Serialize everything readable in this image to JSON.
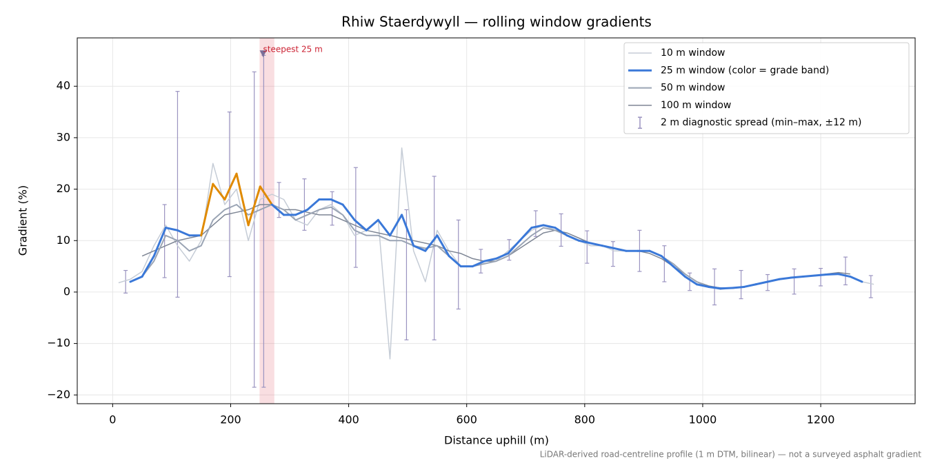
{
  "chart_data": {
    "type": "line",
    "title": "Rhiw Staerdywyll — rolling window gradients",
    "x_label": "Distance uphill (m)",
    "y_label": "Gradient (%)",
    "footnote": "LiDAR-derived road-centreline profile (1 m DTM, bilinear) — not a surveyed asphalt gradient",
    "xlim": [
      -60,
      1360
    ],
    "ylim": [
      -21.7,
      49.4
    ],
    "xticks": [
      0,
      200,
      400,
      600,
      800,
      1000,
      1200
    ],
    "yticks": [
      {
        "value": -20,
        "label": "−20"
      },
      {
        "value": -10,
        "label": "−10"
      },
      0,
      10,
      20,
      30,
      40
    ],
    "grid": true,
    "legend": "upper right",
    "x": [
      10,
      30,
      50,
      70,
      90,
      110,
      130,
      150,
      170,
      190,
      210,
      230,
      250,
      270,
      290,
      310,
      330,
      350,
      370,
      390,
      410,
      430,
      450,
      470,
      490,
      510,
      530,
      550,
      570,
      590,
      610,
      630,
      650,
      670,
      690,
      710,
      730,
      750,
      770,
      790,
      810,
      830,
      850,
      870,
      890,
      910,
      930,
      950,
      970,
      990,
      1010,
      1030,
      1050,
      1070,
      1090,
      1110,
      1130,
      1150,
      1170,
      1190,
      1210,
      1230,
      1250,
      1270,
      1290
    ],
    "series": [
      {
        "name": "10 m window",
        "color": "#c5ccd6",
        "linewidth": 1.5,
        "values": [
          1.8,
          2.5,
          4,
          9,
          13,
          9,
          6,
          10,
          25,
          17,
          20,
          10,
          18,
          19,
          18,
          14,
          13,
          16,
          17,
          15,
          11,
          12,
          14,
          -13,
          28,
          8,
          2,
          12,
          8,
          5,
          5,
          6,
          6,
          8,
          10,
          12,
          13,
          12,
          11,
          10,
          9,
          9,
          8,
          8,
          8,
          8,
          7,
          5,
          3,
          1.5,
          1,
          0.5,
          0.8,
          1,
          1.5,
          2,
          2.5,
          2.8,
          3,
          3.2,
          3.3,
          3.5,
          3,
          2,
          1.5
        ]
      },
      {
        "name": "25 m window (color = grade band)",
        "color": "#3a78d8",
        "linewidth": 3,
        "values": [
          null,
          2,
          3,
          7,
          12.5,
          12,
          11,
          11,
          21,
          18,
          23,
          13,
          20.5,
          17,
          15,
          15,
          16,
          18,
          18,
          17,
          14,
          12,
          14,
          11,
          15,
          9,
          8,
          11,
          7,
          5,
          5,
          6,
          6.5,
          7.5,
          10,
          12.5,
          13,
          12.5,
          11,
          10,
          9.5,
          9,
          8.5,
          8,
          8,
          8,
          7,
          5,
          3,
          1.5,
          1,
          0.7,
          0.8,
          1,
          1.5,
          2,
          2.5,
          2.8,
          3,
          3.2,
          3.4,
          3.5,
          3,
          2,
          null
        ],
        "point_colors": [
          "#3a78d8",
          "#3a78d8",
          "#3a78d8",
          "#3a78d8",
          "#3a78d8",
          "#3a78d8",
          "#3a78d8",
          "#3a78d8",
          "#e08a00",
          "#3a78d8",
          "#e08a00",
          "#3a78d8",
          "#e08a00",
          "#3a78d8",
          "#3a78d8",
          "#3a78d8",
          "#3a78d8",
          "#3a78d8",
          "#3a78d8",
          "#3a78d8",
          "#3a78d8",
          "#3a78d8",
          "#3a78d8",
          "#3a78d8",
          "#3a78d8",
          "#3a78d8",
          "#3a78d8",
          "#3a78d8",
          "#3a78d8",
          "#3a78d8",
          "#3a78d8",
          "#3a78d8",
          "#3a78d8",
          "#3a78d8",
          "#3a78d8",
          "#3a78d8",
          "#3a78d8",
          "#3a78d8",
          "#3a78d8",
          "#3a78d8",
          "#3a78d8",
          "#3a78d8",
          "#3a78d8",
          "#3a78d8",
          "#3a78d8",
          "#3a78d8",
          "#3a78d8",
          "#3a78d8",
          "#3a78d8",
          "#3a78d8",
          "#3a78d8",
          "#3a78d8",
          "#3a78d8",
          "#3a78d8",
          "#3a78d8",
          "#3a78d8",
          "#3a78d8",
          "#3a78d8",
          "#3a78d8",
          "#3a78d8",
          "#3a78d8",
          "#3a78d8",
          "#3a78d8",
          "#3a78d8",
          "#3a78d8"
        ]
      },
      {
        "name": "50 m window",
        "color": "#9aa4b4",
        "linewidth": 2,
        "values": [
          null,
          2,
          3,
          6,
          11,
          10,
          8,
          9,
          14,
          16,
          17,
          15,
          16,
          17,
          16,
          14,
          15,
          16,
          16.5,
          15,
          12,
          11,
          11,
          10,
          10,
          9,
          8.5,
          9,
          7,
          5,
          5,
          5.5,
          6,
          7,
          9,
          11,
          12.5,
          12,
          11,
          10,
          9.5,
          9,
          8.5,
          8,
          8,
          8,
          7,
          5.5,
          3.5,
          2,
          1,
          0.8,
          0.8,
          1,
          1.5,
          2,
          2.5,
          2.8,
          3,
          3.2,
          3.4,
          3.6,
          3,
          2,
          null
        ]
      },
      {
        "name": "100 m window",
        "color": "#7d8594",
        "linewidth": 1.5,
        "values": [
          null,
          null,
          7,
          8,
          9,
          10,
          10.5,
          11,
          13,
          15,
          15.5,
          16,
          17,
          17,
          16,
          16,
          15.5,
          15,
          15,
          14,
          13,
          12,
          11.5,
          11,
          10.5,
          10,
          9.5,
          9,
          8,
          7.5,
          6.5,
          6,
          6,
          7,
          8.5,
          10,
          11.5,
          12,
          11.5,
          10.5,
          9.5,
          9,
          8.5,
          8,
          8,
          7.5,
          6.5,
          5,
          3.5,
          2,
          1.2,
          0.8,
          0.7,
          1,
          1.5,
          2,
          2.5,
          2.8,
          3,
          3.2,
          3.5,
          3.8,
          3.5,
          null,
          null
        ]
      }
    ],
    "spread": {
      "name": "2 m diagnostic spread (min–max, ±12 m)",
      "color": "#9a93c0",
      "x": [
        22,
        88,
        110,
        198,
        240,
        256,
        282,
        325,
        372,
        412,
        498,
        545,
        586,
        624,
        672,
        717,
        760,
        804,
        848,
        893,
        935,
        978,
        1020,
        1065,
        1110,
        1155,
        1200,
        1242,
        1285
      ],
      "low": [
        -0.2,
        2.8,
        -1,
        3,
        -18.5,
        -18.5,
        14.5,
        12,
        13,
        4.8,
        -9.3,
        -9.3,
        -3.3,
        3.7,
        6.2,
        10.8,
        8.9,
        5.6,
        5,
        4,
        2,
        0.3,
        -2.5,
        -1.3,
        0.3,
        -0.4,
        1.2,
        1.4,
        -1.1
      ],
      "high": [
        4.2,
        17,
        39,
        35,
        42.8,
        46,
        21.3,
        22,
        19.5,
        24.2,
        16,
        22.5,
        14,
        8.3,
        10.2,
        15.8,
        15.2,
        11.9,
        9.8,
        12,
        9,
        3.7,
        4.5,
        4.2,
        3.4,
        4.5,
        4.6,
        6.8,
        3.2
      ]
    },
    "highlight": {
      "label": "steepest 25 m",
      "color": "#e05a6a",
      "text_color": "#cc2233",
      "span": [
        249,
        274
      ],
      "marker_x": 255,
      "marker_y": 46.3
    }
  }
}
